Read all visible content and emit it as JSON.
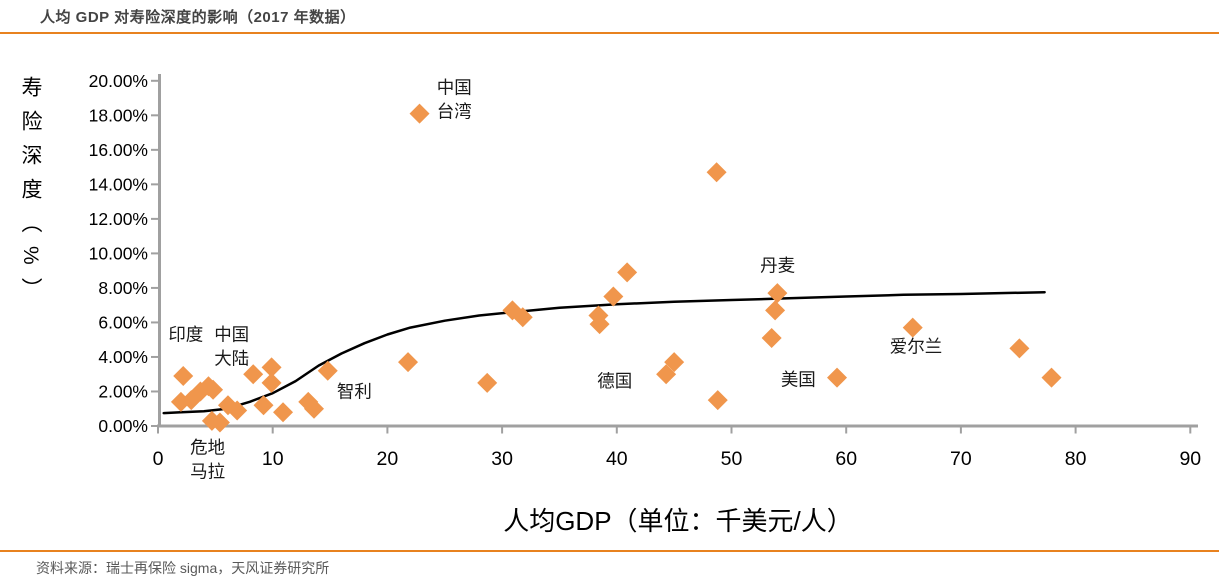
{
  "header": {
    "title": "人均 GDP 对寿险深度的影响（2017 年数据）"
  },
  "footer": {
    "source": "资料来源：瑞士再保险 sigma，天风证券研究所"
  },
  "chart_data": {
    "type": "scatter",
    "title": "人均 GDP 对寿险深度的影响（2017 年数据）",
    "xlabel": "人均GDP（单位：千美元/人）",
    "ylabel": "寿险深度（%）",
    "xlim": [
      0,
      90
    ],
    "ylim": [
      0,
      20
    ],
    "grid": false,
    "legend": "none",
    "marker": "diamond",
    "x_ticks": [
      0,
      10,
      20,
      30,
      40,
      50,
      60,
      70,
      80,
      90
    ],
    "y_ticks": [
      0,
      2,
      4,
      6,
      8,
      10,
      12,
      14,
      16,
      18,
      20
    ],
    "x_tick_labels": [
      "0",
      "10",
      "20",
      "30",
      "40",
      "50",
      "60",
      "70",
      "80",
      "90"
    ],
    "y_tick_labels": [
      "0.00%",
      "2.00%",
      "4.00%",
      "6.00%",
      "8.00%",
      "10.00%",
      "12.00%",
      "14.00%",
      "16.00%",
      "18.00%",
      "20.00%"
    ],
    "colors": {
      "marker": "#F0964C",
      "trend": "#000000",
      "axis": "#A0A0A0",
      "accent_rule": "#E8821F",
      "title_text": "#444444",
      "source_text": "#595959",
      "annotation_text": "#1A1A1A"
    },
    "points": [
      [
        2.2,
        2.9
      ],
      [
        2.0,
        1.4
      ],
      [
        2.9,
        1.5
      ],
      [
        3.7,
        2.0
      ],
      [
        4.4,
        2.3
      ],
      [
        4.8,
        2.1
      ],
      [
        4.7,
        0.3
      ],
      [
        5.4,
        0.2
      ],
      [
        6.1,
        1.2
      ],
      [
        6.9,
        0.9
      ],
      [
        8.3,
        3.0
      ],
      [
        9.2,
        1.2
      ],
      [
        9.9,
        3.4
      ],
      [
        9.9,
        2.5
      ],
      [
        10.9,
        0.8
      ],
      [
        13.1,
        1.4
      ],
      [
        13.6,
        1.0
      ],
      [
        14.8,
        3.2
      ],
      [
        21.8,
        3.7
      ],
      [
        22.8,
        18.1
      ],
      [
        28.7,
        2.5
      ],
      [
        30.9,
        6.7
      ],
      [
        31.8,
        6.3
      ],
      [
        38.4,
        6.4
      ],
      [
        38.5,
        5.9
      ],
      [
        39.7,
        7.5
      ],
      [
        40.9,
        8.9
      ],
      [
        45.0,
        3.7
      ],
      [
        44.3,
        3.0
      ],
      [
        48.8,
        1.5
      ],
      [
        48.7,
        14.7
      ],
      [
        54.0,
        7.7
      ],
      [
        53.8,
        6.7
      ],
      [
        53.5,
        5.1
      ],
      [
        59.2,
        2.8
      ],
      [
        65.8,
        5.7
      ],
      [
        75.1,
        4.5
      ],
      [
        77.9,
        2.8
      ]
    ],
    "trend_curve": [
      [
        0.5,
        0.75
      ],
      [
        2,
        0.8
      ],
      [
        4,
        0.85
      ],
      [
        6,
        1.0
      ],
      [
        8,
        1.4
      ],
      [
        10,
        1.9
      ],
      [
        12,
        2.6
      ],
      [
        14,
        3.5
      ],
      [
        16,
        4.2
      ],
      [
        18,
        4.8
      ],
      [
        20,
        5.3
      ],
      [
        22,
        5.7
      ],
      [
        25,
        6.1
      ],
      [
        28,
        6.4
      ],
      [
        31,
        6.6
      ],
      [
        35,
        6.85
      ],
      [
        40,
        7.05
      ],
      [
        45,
        7.2
      ],
      [
        50,
        7.3
      ],
      [
        55,
        7.4
      ],
      [
        60,
        7.5
      ],
      [
        65,
        7.6
      ],
      [
        70,
        7.65
      ],
      [
        77.3,
        7.75
      ]
    ],
    "annotations": [
      {
        "name": "india",
        "lines": [
          "印度"
        ],
        "x": 0.9,
        "y": 5.3
      },
      {
        "name": "china-mainland",
        "lines": [
          "中国",
          "大陆"
        ],
        "x": 4.9,
        "y": 5.3
      },
      {
        "name": "guatemala",
        "lines": [
          "危地",
          "马拉"
        ],
        "x": 2.8,
        "y": -1.25
      },
      {
        "name": "chile",
        "lines": [
          "智利"
        ],
        "x": 15.6,
        "y": 2.0
      },
      {
        "name": "china-taiwan",
        "lines": [
          "中国",
          "台湾"
        ],
        "x": 24.3,
        "y": 19.6
      },
      {
        "name": "germany",
        "lines": [
          "德国"
        ],
        "x": 38.3,
        "y": 2.6
      },
      {
        "name": "denmark",
        "lines": [
          "丹麦"
        ],
        "x": 52.5,
        "y": 9.3
      },
      {
        "name": "usa",
        "lines": [
          "美国"
        ],
        "x": 54.3,
        "y": 2.7
      },
      {
        "name": "ireland",
        "lines": [
          "爱尔兰"
        ],
        "x": 63.8,
        "y": 4.6
      }
    ]
  }
}
